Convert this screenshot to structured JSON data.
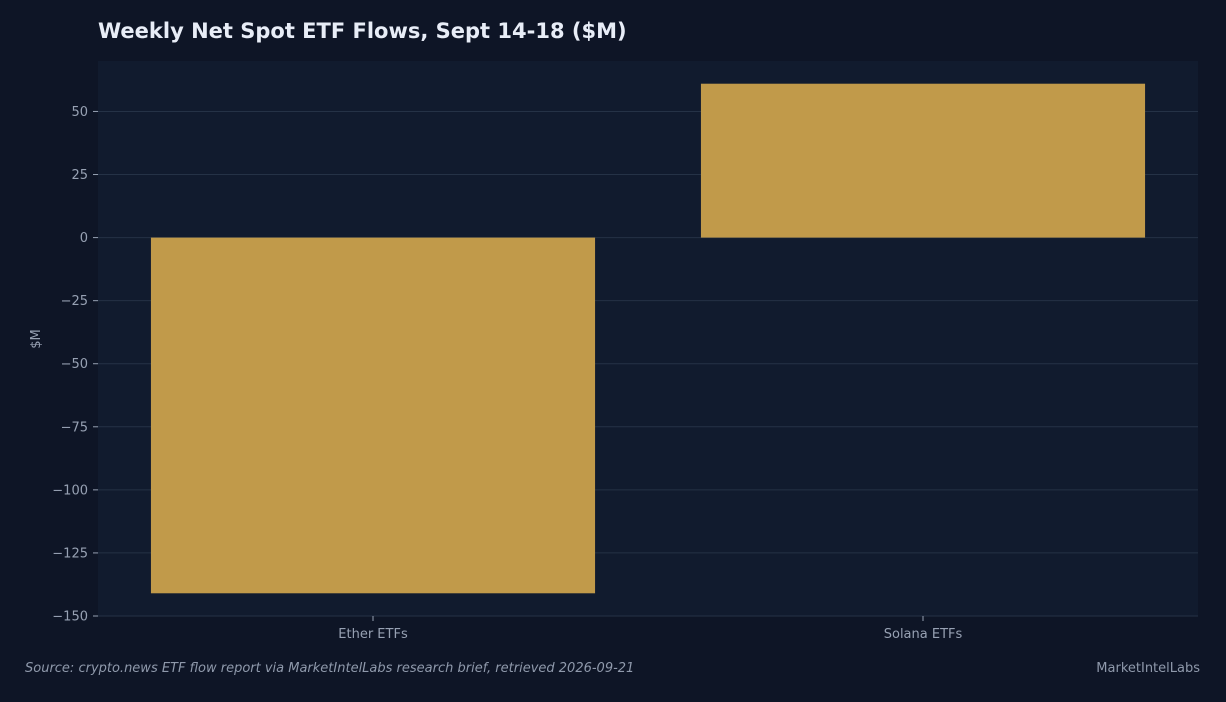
{
  "chart_data": {
    "type": "bar",
    "title": "Weekly Net Spot ETF Flows, Sept 14-18 ($M)",
    "xlabel": "",
    "ylabel": "$M",
    "categories": [
      "Ether ETFs",
      "Solana ETFs"
    ],
    "values": [
      -141,
      61
    ],
    "ylim": [
      -150,
      70
    ],
    "yticks": [
      50,
      25,
      0,
      -25,
      -50,
      -75,
      -100,
      -125,
      -150
    ],
    "ytick_labels": [
      "50",
      "25",
      "0",
      "−25",
      "−50",
      "−75",
      "−100",
      "−125",
      "−150"
    ],
    "grid": true,
    "bar_color": "#c19a4a",
    "plot_background": "#111b2e",
    "page_background": "#0e1526",
    "grid_color": "#253246"
  },
  "footer": {
    "source": "Source: crypto.news ETF flow report via MarketIntelLabs research brief, retrieved 2026-09-21",
    "brand": "MarketIntelLabs"
  }
}
